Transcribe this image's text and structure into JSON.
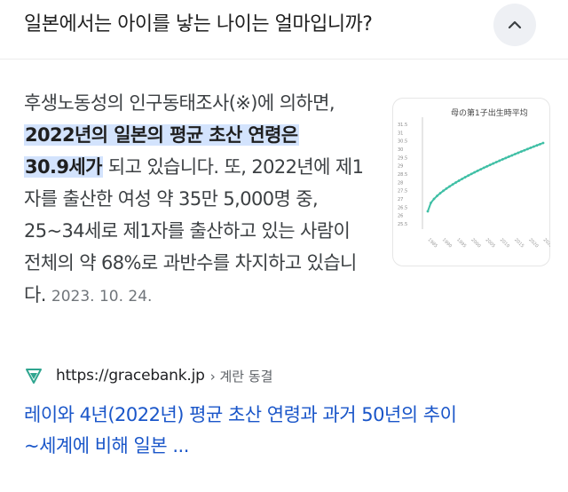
{
  "question": "일본에서는 아이를 낳는 나이는 얼마입니까?",
  "collapse_icon": "chevron-up-icon",
  "snippet": {
    "text_before": "후생노동성의 인구동태조사(※)에 의하면, ",
    "highlight_1": "2022년의 일본의 평균 초산 연령은",
    "highlight_2": "30.9세가",
    "text_after": " 되고 있습니다. 또, 2022년에 제1자를 출산한 여성 약 35만 5,000명 중, 25~34세로 제1자를 출산하고 있는 사람이 전체의 약 68%로 과반수를 차지하고 있습니다. ",
    "date": "2023. 10. 24."
  },
  "thumbnail": {
    "title": "母の第1子出生時平均",
    "y_ticks": [
      "31.5",
      "31",
      "30.5",
      "30",
      "29.5",
      "29",
      "28.5",
      "28",
      "27.5",
      "27",
      "26.5",
      "26",
      "25.5"
    ],
    "x_ticks": [
      "1985",
      "1990",
      "1995",
      "2000",
      "2005",
      "2010",
      "2015",
      "2020",
      "2022"
    ],
    "accent_color": "#3fbfa5"
  },
  "source": {
    "favicon": "gracebank-logo-icon",
    "url": "https://gracebank.jp",
    "crumb": "› 계란 동결"
  },
  "result": {
    "title_line1": "레이와 4년(2022년) 평균 초산 연령과 과거 50년의 추이",
    "title_line2": "~세계에 비해 일본 ..."
  }
}
